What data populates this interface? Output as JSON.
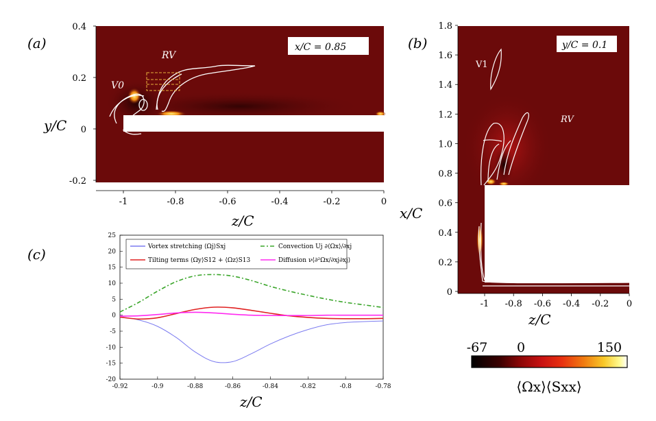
{
  "panels": {
    "a": {
      "label": "(a)",
      "annotation": "x/C = 0.85",
      "ylabel": "y/C",
      "xlabel": "z/C",
      "yticks": [
        "0.4",
        "0.2",
        "0",
        "-0.2"
      ],
      "xticks": [
        "-1",
        "-0.8",
        "-0.6",
        "-0.4",
        "-0.2",
        "0"
      ],
      "vortex_labels": [
        "RV",
        "V0"
      ]
    },
    "b": {
      "label": "(b)",
      "annotation": "y/C = 0.1",
      "ylabel": "x/C",
      "xlabel": "z/C",
      "yticks": [
        "1.8",
        "1.6",
        "1.4",
        "1.2",
        "1.0",
        "0.8",
        "0.6",
        "0.4",
        "0.2",
        "0"
      ],
      "xticks": [
        "-1",
        "-0.8",
        "-0.6",
        "-0.4",
        "-0.2",
        "0"
      ],
      "vortex_labels": [
        "V1",
        "RV"
      ]
    },
    "c": {
      "label": "(c)",
      "xlabel": "z/C"
    }
  },
  "colorbar": {
    "min_label": "-67",
    "mid_label": "0",
    "max_label": "150",
    "label": "⟨Ωx⟩⟨Sxx⟩",
    "colors": [
      "#000000",
      "#3a0000",
      "#8a0606",
      "#c81212",
      "#e83010",
      "#f07a10",
      "#f8c828",
      "#fffa90",
      "#ffffff"
    ]
  },
  "contour_colors": {
    "field_background": "#6b0a0a",
    "wall": "#ffffff",
    "contour": "#ffffff"
  },
  "chart_data": {
    "type": "line",
    "x": [
      -0.92,
      -0.91,
      -0.9,
      -0.89,
      -0.88,
      -0.87,
      -0.86,
      -0.85,
      -0.84,
      -0.83,
      -0.82,
      -0.81,
      -0.8,
      -0.79,
      -0.78
    ],
    "xlim": [
      -0.92,
      -0.78
    ],
    "ylim": [
      -20,
      25
    ],
    "xticks": [
      -0.92,
      -0.9,
      -0.88,
      -0.86,
      -0.84,
      -0.82,
      -0.8,
      -0.78
    ],
    "yticks": [
      25,
      20,
      15,
      10,
      5,
      0,
      -5,
      -10,
      -15,
      -20
    ],
    "xlabel": "z/C",
    "grid": false,
    "legend_position": "top",
    "series": [
      {
        "name": "Vortex stretching ⟨Ωj⟩Sxj",
        "color": "#7b7bf0",
        "dash": "",
        "values": [
          -0.5,
          -1.5,
          -3.5,
          -7,
          -11.5,
          -14.5,
          -14.5,
          -12,
          -9,
          -6.5,
          -4.5,
          -3,
          -2.3,
          -2,
          -1.8
        ]
      },
      {
        "name": "Tilting terms ⟨Ωy⟩S12 + ⟨Ωz⟩S13",
        "color": "#e02020",
        "dash": "",
        "values": [
          -0.6,
          -1.2,
          -0.8,
          0.5,
          1.8,
          2.5,
          2.3,
          1.5,
          0.6,
          -0.2,
          -0.7,
          -1.0,
          -1.1,
          -1.1,
          -1.0
        ]
      },
      {
        "name": "Convection Uj ∂⟨Ωx⟩/∂xj",
        "color": "#3aa52a",
        "dash": "6 3 2 3",
        "values": [
          1.0,
          4.0,
          7.5,
          10.5,
          12.3,
          12.7,
          12.2,
          10.8,
          9.0,
          7.5,
          6.2,
          5.0,
          4.0,
          3.2,
          2.4
        ]
      },
      {
        "name": "Diffusion ν⟨∂²Ωx/∂xj∂xj⟩",
        "color": "#ff2af0",
        "dash": "",
        "values": [
          -0.3,
          -0.2,
          0.2,
          0.7,
          0.9,
          0.7,
          0.3,
          0.0,
          -0.1,
          -0.1,
          -0.1,
          0.0,
          0.0,
          0.0,
          0.0
        ]
      }
    ]
  }
}
